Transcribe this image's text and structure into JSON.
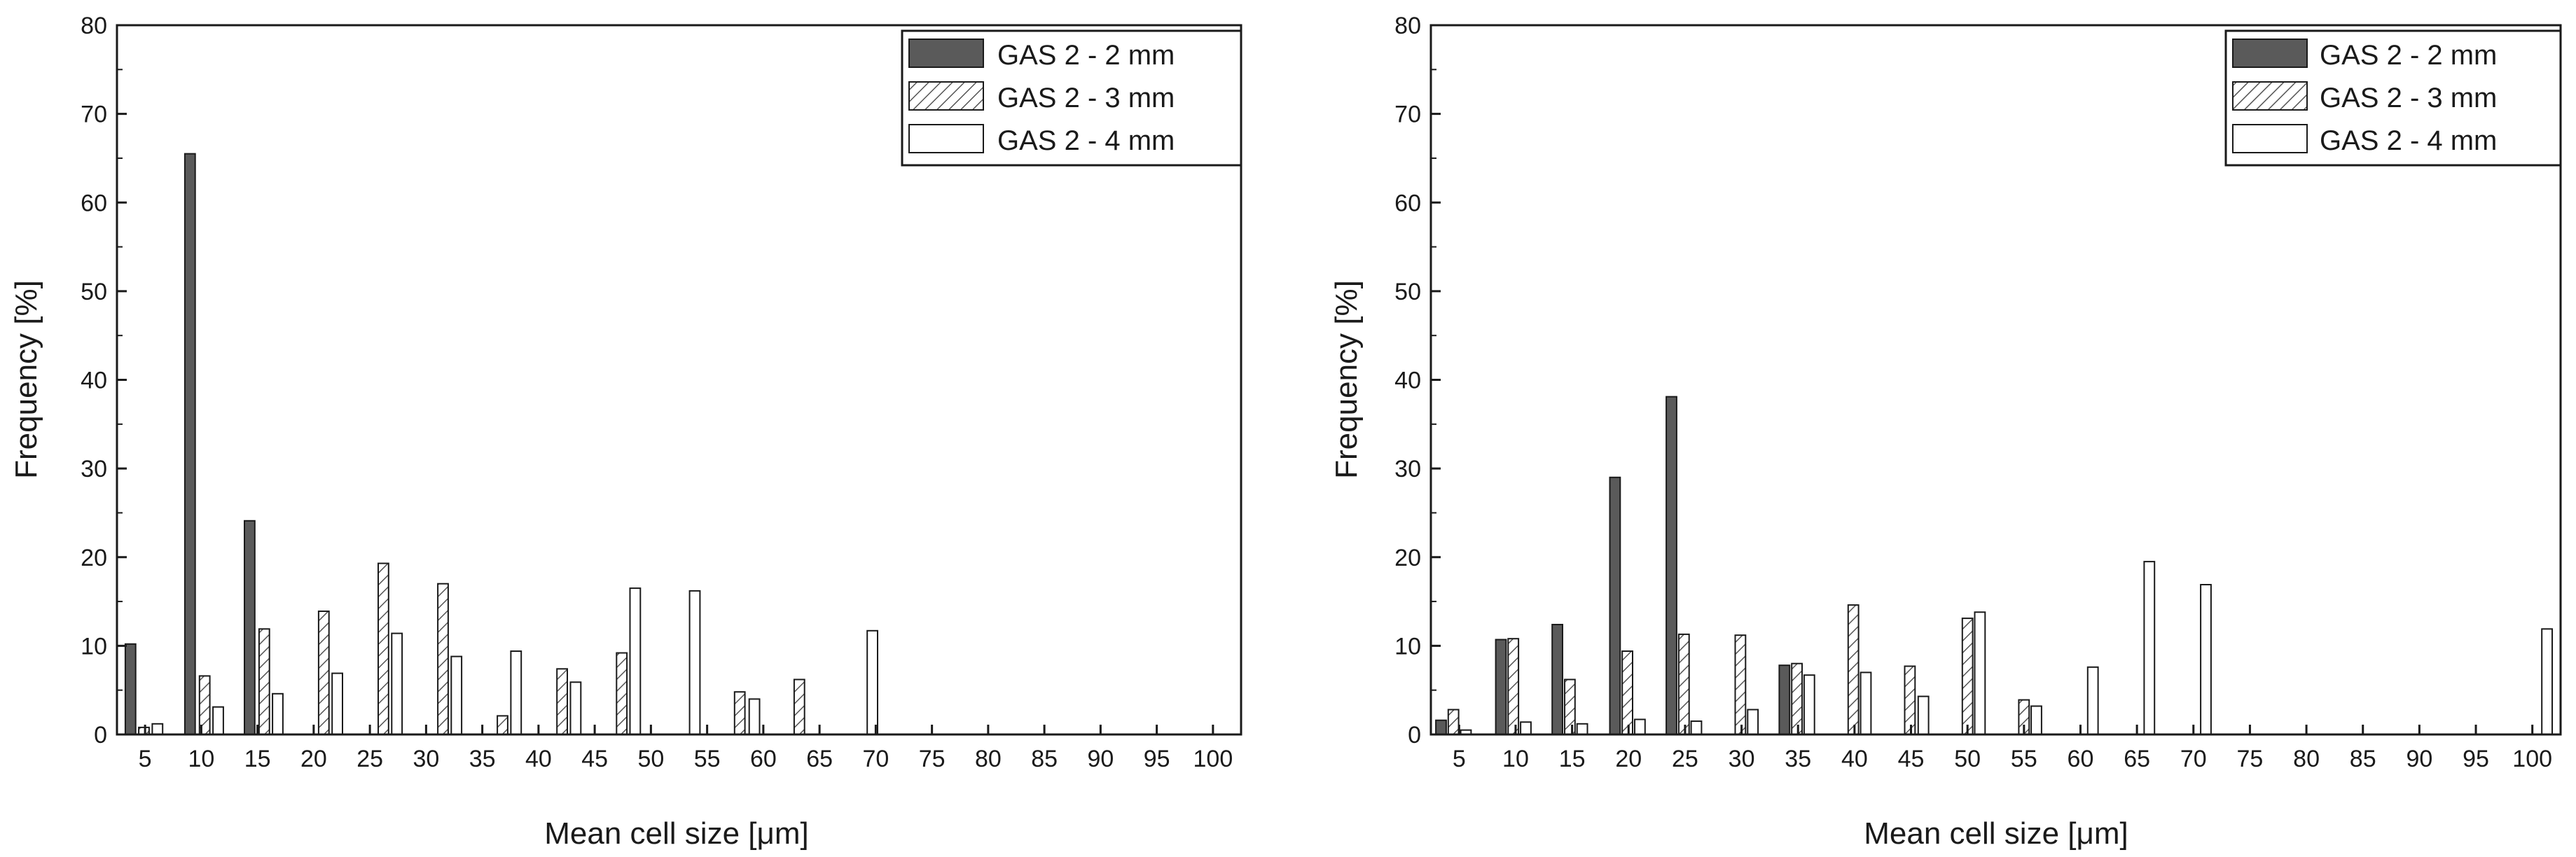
{
  "chart_data": [
    {
      "type": "bar",
      "title": "",
      "xlabel": "Mean cell size [μm]",
      "ylabel": "Frequency [%]",
      "xlim": [
        2.5,
        102.5
      ],
      "ylim": [
        0,
        80
      ],
      "x_ticks": [
        5,
        10,
        15,
        20,
        25,
        30,
        35,
        40,
        45,
        50,
        55,
        60,
        65,
        70,
        75,
        80,
        85,
        90,
        95,
        100
      ],
      "y_ticks": [
        0,
        10,
        20,
        30,
        40,
        50,
        60,
        70,
        80
      ],
      "legend_position": "top-right",
      "series": [
        {
          "name": "GAS 2 - 2 mm",
          "style": "solid-dark",
          "points": [
            [
              3.7,
              10.2
            ],
            [
              9.0,
              65.5
            ],
            [
              14.3,
              24.1
            ]
          ]
        },
        {
          "name": "GAS 2 - 3 mm",
          "style": "hatched",
          "points": [
            [
              4.9,
              0.8
            ],
            [
              10.3,
              6.6
            ],
            [
              15.6,
              11.9
            ],
            [
              20.9,
              13.9
            ],
            [
              26.2,
              19.3
            ],
            [
              31.5,
              17.0
            ],
            [
              36.8,
              2.1
            ],
            [
              42.1,
              7.4
            ],
            [
              47.4,
              9.2
            ],
            [
              57.9,
              4.8
            ],
            [
              63.2,
              6.2
            ]
          ]
        },
        {
          "name": "GAS 2 - 4 mm",
          "style": "open",
          "points": [
            [
              6.1,
              1.2
            ],
            [
              11.5,
              3.1
            ],
            [
              16.8,
              4.6
            ],
            [
              22.1,
              6.9
            ],
            [
              27.4,
              11.4
            ],
            [
              32.7,
              8.8
            ],
            [
              38.0,
              9.4
            ],
            [
              43.3,
              5.9
            ],
            [
              48.6,
              16.5
            ],
            [
              53.9,
              16.2
            ],
            [
              59.2,
              4.0
            ],
            [
              69.7,
              11.7
            ]
          ]
        }
      ]
    },
    {
      "type": "bar",
      "title": "",
      "xlabel": "Mean cell size [μm]",
      "ylabel": "Frequency [%]",
      "xlim": [
        2.5,
        102.5
      ],
      "ylim": [
        0,
        80
      ],
      "x_ticks": [
        5,
        10,
        15,
        20,
        25,
        30,
        35,
        40,
        45,
        50,
        55,
        60,
        65,
        70,
        75,
        80,
        85,
        90,
        95,
        100
      ],
      "y_ticks": [
        0,
        10,
        20,
        30,
        40,
        50,
        60,
        70,
        80
      ],
      "legend_position": "top-right",
      "series": [
        {
          "name": "GAS 2 - 2 mm",
          "style": "solid-dark",
          "points": [
            [
              3.4,
              1.6
            ],
            [
              8.7,
              10.7
            ],
            [
              13.7,
              12.4
            ],
            [
              18.8,
              29.0
            ],
            [
              23.8,
              38.1
            ],
            [
              33.8,
              7.8
            ]
          ]
        },
        {
          "name": "GAS 2 - 3 mm",
          "style": "hatched",
          "points": [
            [
              4.5,
              2.8
            ],
            [
              9.8,
              10.8
            ],
            [
              14.8,
              6.2
            ],
            [
              19.9,
              9.4
            ],
            [
              24.9,
              11.3
            ],
            [
              29.9,
              11.2
            ],
            [
              34.9,
              8.0
            ],
            [
              39.9,
              14.6
            ],
            [
              44.9,
              7.7
            ],
            [
              50.0,
              13.1
            ],
            [
              55.0,
              3.9
            ]
          ]
        },
        {
          "name": "GAS 2 - 4 mm",
          "style": "open",
          "points": [
            [
              5.6,
              0.5
            ],
            [
              10.9,
              1.4
            ],
            [
              15.9,
              1.2
            ],
            [
              21.0,
              1.7
            ],
            [
              26.0,
              1.5
            ],
            [
              31.0,
              2.8
            ],
            [
              36.0,
              6.7
            ],
            [
              41.0,
              7.0
            ],
            [
              46.1,
              4.3
            ],
            [
              51.1,
              13.8
            ],
            [
              56.1,
              3.2
            ],
            [
              61.1,
              7.6
            ],
            [
              66.1,
              19.5
            ],
            [
              71.1,
              16.9
            ],
            [
              101.3,
              11.9
            ]
          ]
        }
      ]
    }
  ]
}
